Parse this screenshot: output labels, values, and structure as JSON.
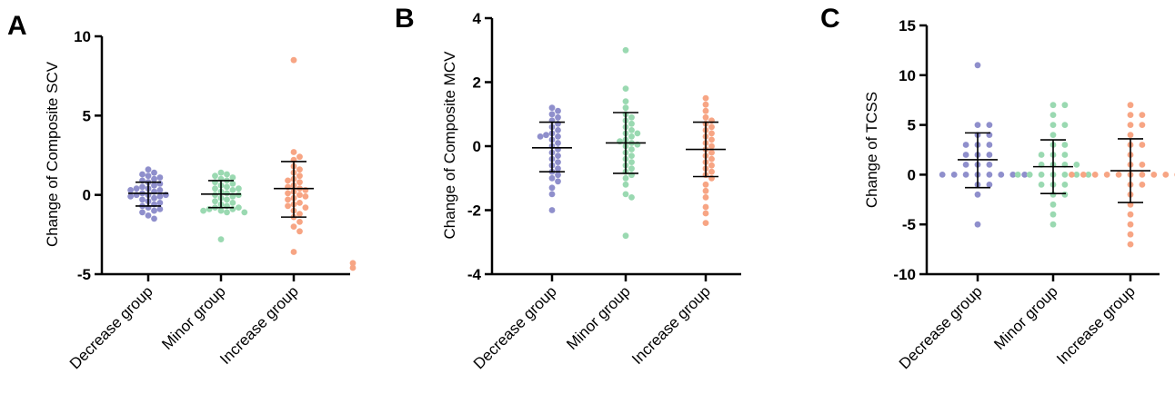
{
  "colors": {
    "decrease": "#8f8fcc",
    "minor": "#9ad9b1",
    "increase": "#f7a584",
    "axis": "#000000",
    "error_bar": "#000000"
  },
  "chart_data": [
    {
      "type": "scatter",
      "panel_label": "A",
      "title": "",
      "xlabel": "",
      "ylabel": "Change of Composite SCV",
      "ylim": [
        -5,
        10
      ],
      "yticks": [
        -5,
        0,
        5,
        10
      ],
      "grid": false,
      "legend": "none",
      "categories": [
        "Decrease group",
        "Minor group",
        "Increase group"
      ],
      "series": [
        {
          "category": "Decrease group",
          "color_key": "decrease",
          "mean": 0.1,
          "error_low": -0.7,
          "error_high": 0.8,
          "values": [
            1.6,
            1.4,
            1.3,
            1.2,
            1.1,
            1.0,
            0.9,
            0.8,
            0.7,
            0.6,
            0.5,
            0.4,
            0.4,
            0.3,
            0.3,
            0.2,
            0.1,
            0.0,
            0.0,
            0.0,
            -0.1,
            -0.1,
            -0.2,
            -0.3,
            -0.4,
            -0.5,
            -0.6,
            -0.7,
            -0.8,
            -0.9,
            -1.0,
            -1.1,
            -1.3,
            -1.5
          ]
        },
        {
          "category": "Minor group",
          "color_key": "minor",
          "mean": 0.05,
          "error_low": -0.8,
          "error_high": 0.9,
          "values": [
            1.4,
            1.3,
            1.2,
            1.1,
            1.0,
            0.9,
            0.8,
            0.7,
            0.6,
            0.5,
            0.4,
            0.4,
            0.3,
            0.2,
            0.1,
            0.0,
            0.0,
            -0.1,
            -0.2,
            -0.3,
            -0.4,
            -0.5,
            -0.6,
            -0.7,
            -0.8,
            -0.8,
            -0.9,
            -0.9,
            -1.0,
            -1.0,
            -1.1,
            -1.1,
            -2.8
          ]
        },
        {
          "category": "Increase group",
          "color_key": "increase",
          "mean": 0.4,
          "error_low": -1.4,
          "error_high": 2.1,
          "values": [
            8.5,
            2.7,
            2.4,
            2.2,
            1.8,
            1.6,
            1.4,
            1.2,
            1.0,
            0.9,
            0.8,
            0.6,
            0.5,
            0.4,
            0.3,
            0.2,
            0.1,
            0.0,
            -0.1,
            -0.2,
            -0.3,
            -0.5,
            -0.6,
            -0.7,
            -0.8,
            -1.0,
            -1.2,
            -1.4,
            -1.7,
            -2.0,
            -2.3,
            -3.6
          ]
        }
      ],
      "extra_points": [
        {
          "category_offset": 3.1,
          "values": [
            -4.3,
            -4.6
          ],
          "color_key": "increase"
        }
      ]
    },
    {
      "type": "scatter",
      "panel_label": "B",
      "title": "",
      "xlabel": "",
      "ylabel": "Change of Composite MCV",
      "ylim": [
        -4,
        4
      ],
      "yticks": [
        -4,
        -2,
        0,
        2,
        4
      ],
      "grid": false,
      "legend": "none",
      "categories": [
        "Decrease group",
        "Minor group",
        "Increase group"
      ],
      "series": [
        {
          "category": "Decrease group",
          "color_key": "decrease",
          "mean": -0.05,
          "error_low": -0.8,
          "error_high": 0.75,
          "values": [
            1.2,
            1.1,
            1.0,
            0.9,
            0.8,
            0.7,
            0.6,
            0.5,
            0.4,
            0.35,
            0.3,
            0.3,
            0.2,
            0.1,
            0.0,
            -0.1,
            -0.2,
            -0.3,
            -0.4,
            -0.5,
            -0.6,
            -0.7,
            -0.8,
            -0.9,
            -1.0,
            -1.1,
            -1.3,
            -1.5,
            -2.0
          ]
        },
        {
          "category": "Minor group",
          "color_key": "minor",
          "mean": 0.1,
          "error_low": -0.85,
          "error_high": 1.05,
          "values": [
            3.0,
            1.8,
            1.4,
            1.2,
            1.0,
            0.9,
            0.8,
            0.7,
            0.6,
            0.5,
            0.4,
            0.4,
            0.3,
            0.2,
            0.15,
            0.1,
            0.05,
            0.0,
            -0.1,
            -0.2,
            -0.3,
            -0.4,
            -0.5,
            -0.6,
            -0.7,
            -0.8,
            -0.9,
            -1.0,
            -1.2,
            -1.5,
            -1.6,
            -2.8
          ]
        },
        {
          "category": "Increase group",
          "color_key": "increase",
          "mean": -0.1,
          "error_low": -0.95,
          "error_high": 0.75,
          "values": [
            1.5,
            1.3,
            1.1,
            0.9,
            0.8,
            0.7,
            0.6,
            0.5,
            0.4,
            0.3,
            0.2,
            0.1,
            0.0,
            -0.1,
            -0.2,
            -0.3,
            -0.4,
            -0.5,
            -0.6,
            -0.7,
            -0.8,
            -0.9,
            -1.0,
            -1.2,
            -1.4,
            -1.6,
            -1.9,
            -2.1,
            -2.4
          ]
        }
      ]
    },
    {
      "type": "scatter",
      "panel_label": "C",
      "title": "",
      "xlabel": "",
      "ylabel": "Change of TCSS",
      "ylim": [
        -10,
        15
      ],
      "yticks": [
        -10,
        -5,
        0,
        5,
        10,
        15
      ],
      "grid": false,
      "legend": "none",
      "categories": [
        "Decrease group",
        "Minor group",
        "Increase group"
      ],
      "series": [
        {
          "category": "Decrease group",
          "color_key": "decrease",
          "mean": 1.5,
          "error_low": -1.3,
          "error_high": 4.2,
          "values": [
            11,
            5,
            5,
            4,
            4,
            3,
            3,
            3,
            2,
            2,
            2,
            1,
            1,
            1,
            0,
            0,
            0,
            0,
            0,
            0,
            0,
            0,
            -1,
            -1,
            -2,
            -5
          ]
        },
        {
          "category": "Minor group",
          "color_key": "minor",
          "mean": 0.8,
          "error_low": -1.9,
          "error_high": 3.5,
          "values": [
            7,
            7,
            6,
            5,
            5,
            4,
            3,
            3,
            2,
            2,
            2,
            1,
            1,
            1,
            1,
            0,
            0,
            0,
            0,
            0,
            0,
            0,
            -1,
            -1,
            -1,
            -2,
            -2,
            -3,
            -4,
            -5
          ]
        },
        {
          "category": "Increase group",
          "color_key": "increase",
          "mean": 0.4,
          "error_low": -2.8,
          "error_high": 3.6,
          "values": [
            7,
            6,
            6,
            5,
            5,
            4,
            3,
            3,
            2,
            1,
            1,
            0,
            0,
            0,
            0,
            0,
            0,
            0,
            0,
            0,
            0,
            0,
            -1,
            -1,
            -2,
            -3,
            -4,
            -5,
            -6,
            -7
          ]
        }
      ]
    }
  ]
}
